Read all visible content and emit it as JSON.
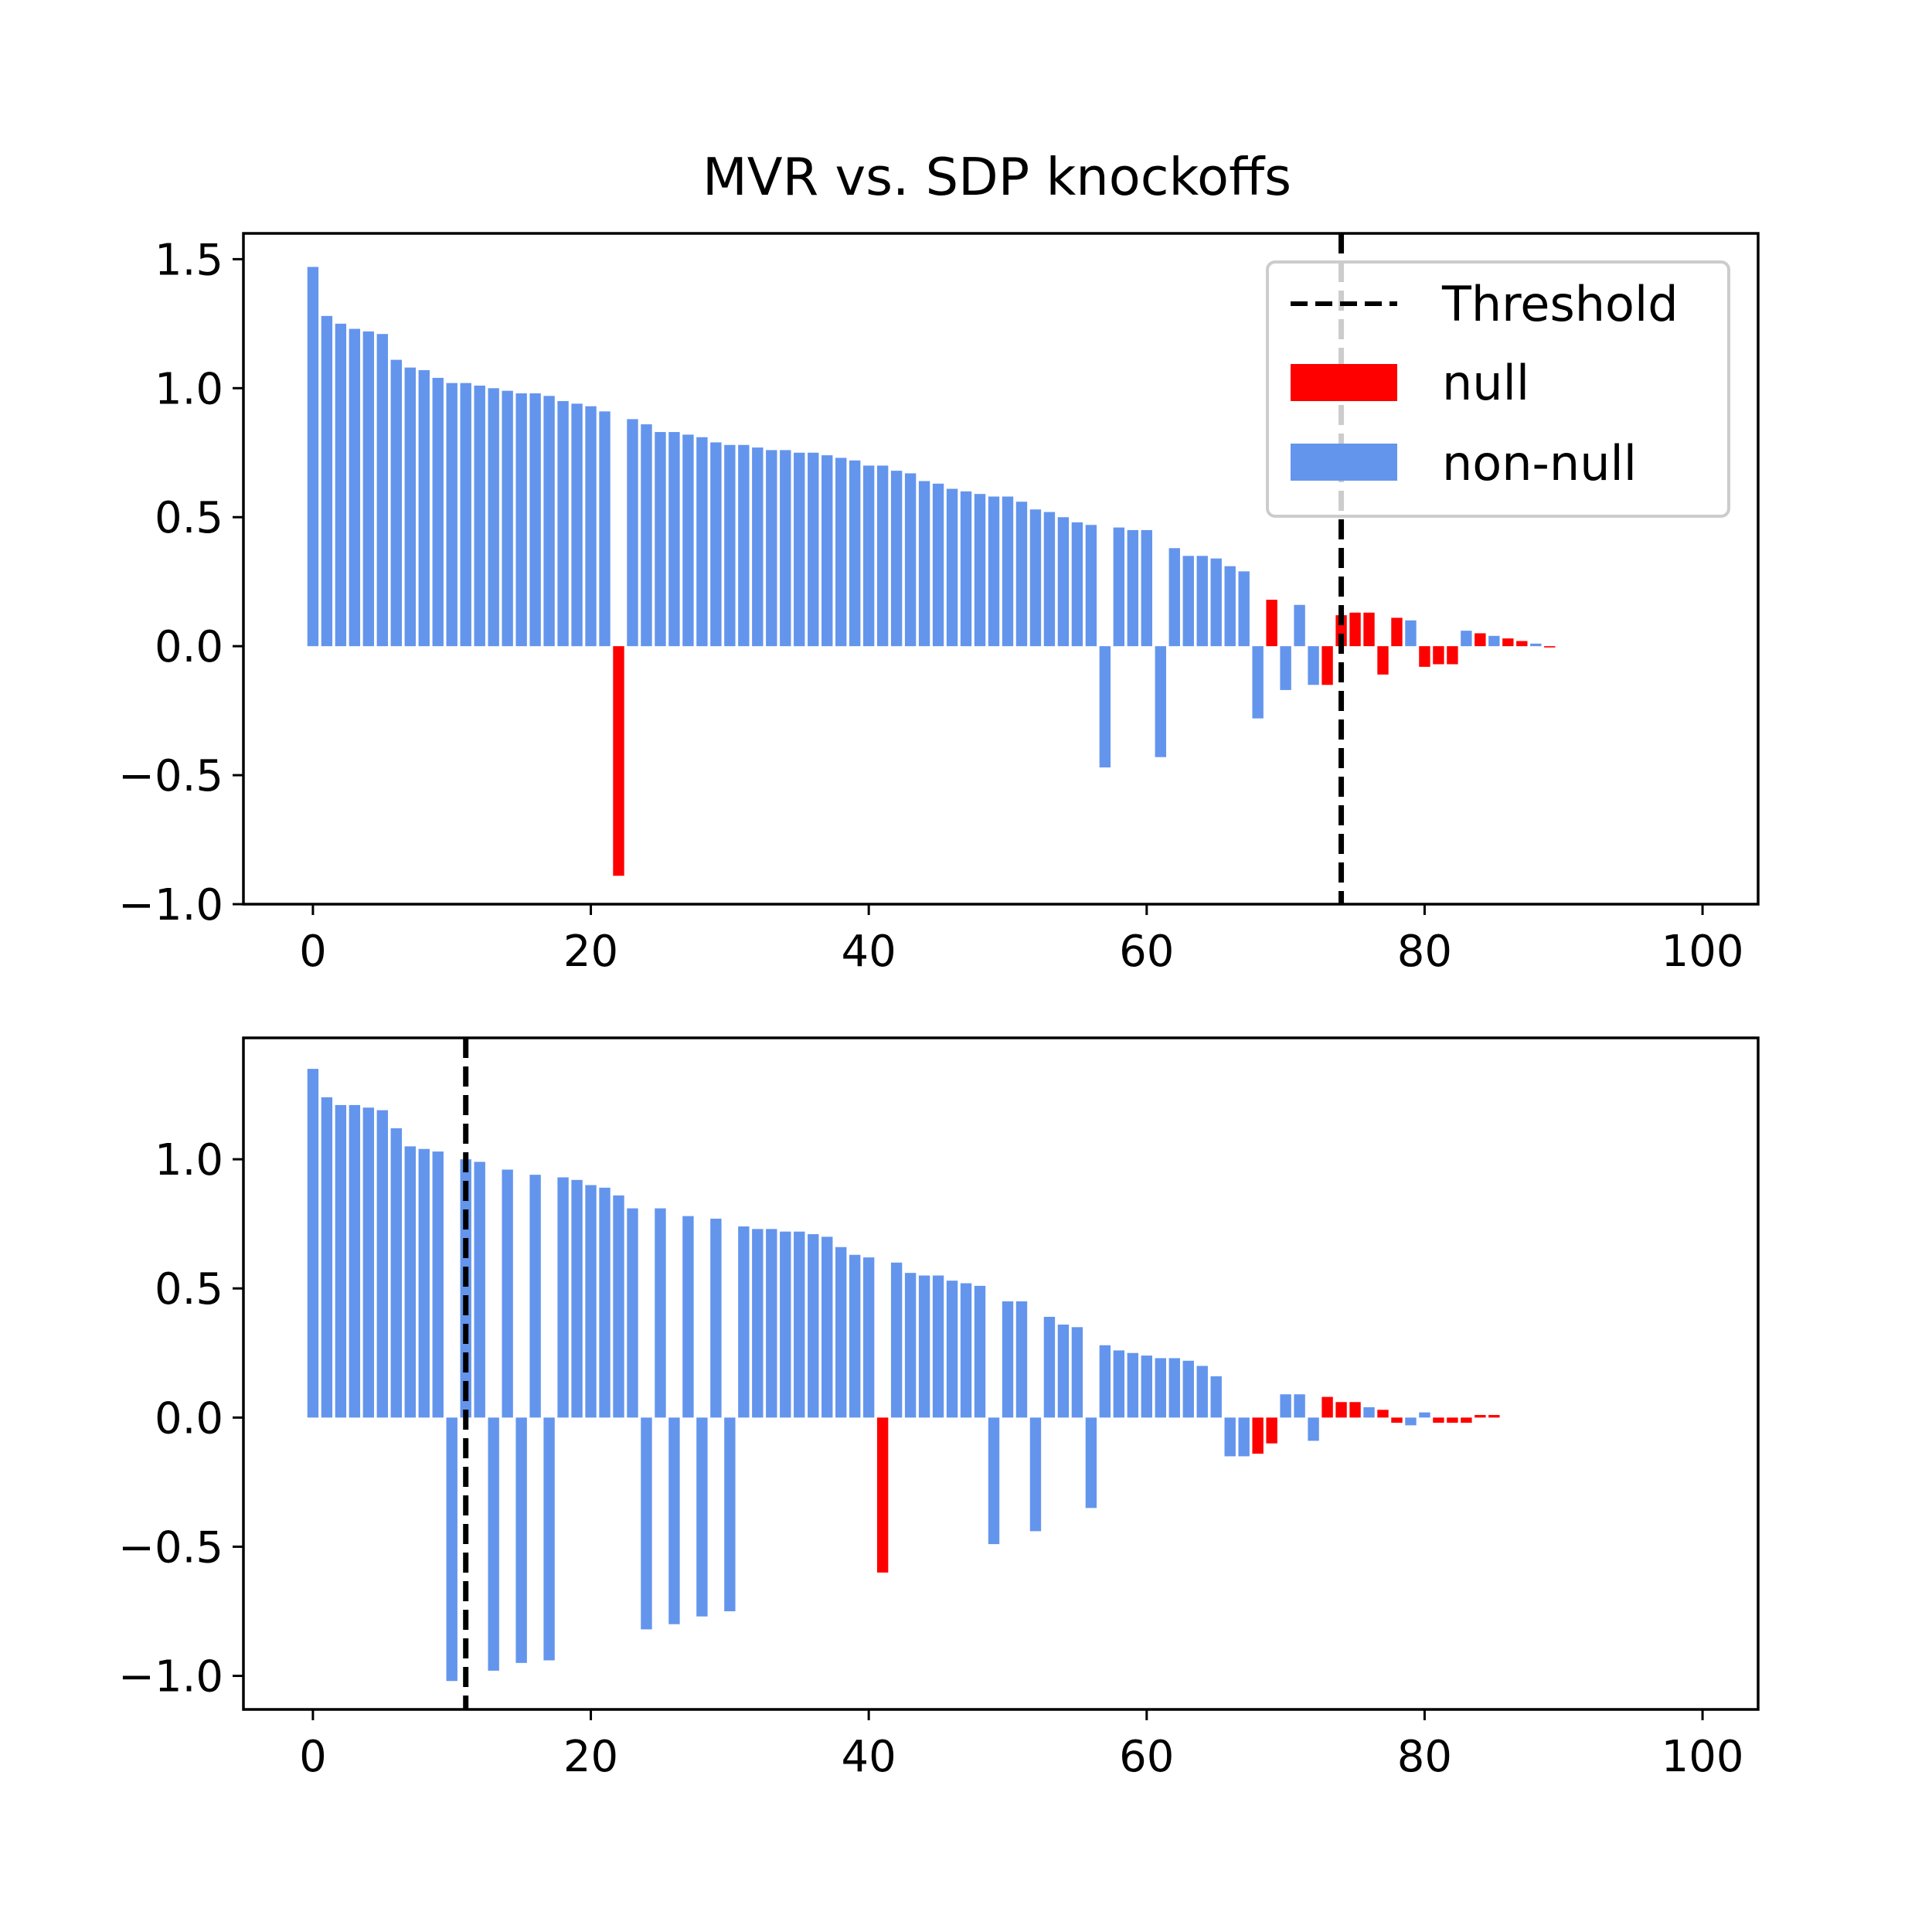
{
  "title": "MVR vs. SDP knockoffs",
  "colors": {
    "null": "#ff0000",
    "non_null": "#6495ed",
    "threshold": "#000000",
    "axes": "#000000",
    "legend_frame": "#cccccc"
  },
  "legend": {
    "placement": "upper right of top panel",
    "entries": [
      {
        "label": "Threshold",
        "kind": "dashed-line"
      },
      {
        "label": "null",
        "kind": "patch",
        "color": "#ff0000"
      },
      {
        "label": "non-null",
        "kind": "patch",
        "color": "#6495ed"
      }
    ]
  },
  "chart_data": [
    {
      "type": "bar",
      "panel": "top",
      "title": "MVR vs. SDP knockoffs",
      "xlabel": "",
      "ylabel": "",
      "xlim": [
        -5,
        104
      ],
      "ylim": [
        -1.0,
        1.6
      ],
      "xticks": [
        0,
        20,
        40,
        60,
        80,
        100
      ],
      "xtick_labels": [
        "0",
        "20",
        "40",
        "60",
        "80",
        "100"
      ],
      "yticks": [
        -1.0,
        -0.5,
        0.0,
        0.5,
        1.0,
        1.5
      ],
      "ytick_labels": [
        "−1.0",
        "−0.5",
        "0.0",
        "0.5",
        "1.0",
        "1.5"
      ],
      "threshold": 74,
      "grid": false,
      "x": [
        0,
        1,
        2,
        3,
        4,
        5,
        6,
        7,
        8,
        9,
        10,
        11,
        12,
        13,
        14,
        15,
        16,
        17,
        18,
        19,
        20,
        21,
        22,
        23,
        24,
        25,
        26,
        27,
        28,
        29,
        30,
        31,
        32,
        33,
        34,
        35,
        36,
        37,
        38,
        39,
        40,
        41,
        42,
        43,
        44,
        45,
        46,
        47,
        48,
        49,
        50,
        51,
        52,
        53,
        54,
        55,
        56,
        57,
        58,
        59,
        60,
        61,
        62,
        63,
        64,
        65,
        66,
        67,
        68,
        69,
        70,
        71,
        72,
        73,
        74,
        75,
        76,
        77,
        78,
        79,
        80,
        81,
        82,
        83,
        84,
        85,
        86,
        87,
        88,
        89
      ],
      "values": [
        1.47,
        1.28,
        1.25,
        1.23,
        1.22,
        1.21,
        1.11,
        1.08,
        1.07,
        1.04,
        1.02,
        1.02,
        1.01,
        1.0,
        0.99,
        0.98,
        0.98,
        0.97,
        0.95,
        0.94,
        0.93,
        0.91,
        -0.89,
        0.88,
        0.86,
        0.83,
        0.83,
        0.82,
        0.81,
        0.79,
        0.78,
        0.78,
        0.77,
        0.76,
        0.76,
        0.75,
        0.75,
        0.74,
        0.73,
        0.72,
        0.7,
        0.7,
        0.68,
        0.67,
        0.64,
        0.63,
        0.61,
        0.6,
        0.59,
        0.58,
        0.58,
        0.56,
        0.53,
        0.52,
        0.5,
        0.48,
        0.47,
        -0.47,
        0.46,
        0.45,
        0.45,
        -0.43,
        0.38,
        0.35,
        0.35,
        0.34,
        0.31,
        0.29,
        -0.28,
        0.18,
        -0.17,
        0.16,
        -0.15,
        -0.15,
        0.12,
        0.13,
        0.13,
        -0.11,
        0.11,
        0.1,
        -0.08,
        -0.07,
        -0.07,
        0.06,
        0.05,
        0.04,
        0.03,
        0.02,
        0.01,
        -0.005
      ],
      "is_null": [
        false,
        false,
        false,
        false,
        false,
        false,
        false,
        false,
        false,
        false,
        false,
        false,
        false,
        false,
        false,
        false,
        false,
        false,
        false,
        false,
        false,
        false,
        true,
        false,
        false,
        false,
        false,
        false,
        false,
        false,
        false,
        false,
        false,
        false,
        false,
        false,
        false,
        false,
        false,
        false,
        false,
        false,
        false,
        false,
        false,
        false,
        false,
        false,
        false,
        false,
        false,
        false,
        false,
        false,
        false,
        false,
        false,
        false,
        false,
        false,
        false,
        false,
        false,
        false,
        false,
        false,
        false,
        false,
        false,
        true,
        false,
        false,
        false,
        true,
        true,
        true,
        true,
        true,
        true,
        false,
        true,
        true,
        true,
        false,
        true,
        false,
        true,
        true,
        false,
        true
      ]
    },
    {
      "type": "bar",
      "panel": "bottom",
      "xlabel": "",
      "ylabel": "",
      "xlim": [
        -5,
        104
      ],
      "ylim": [
        -1.13,
        1.47
      ],
      "xticks": [
        0,
        20,
        40,
        60,
        80,
        100
      ],
      "xtick_labels": [
        "0",
        "20",
        "40",
        "60",
        "80",
        "100"
      ],
      "yticks": [
        -1.0,
        -0.5,
        0.0,
        0.5,
        1.0
      ],
      "ytick_labels": [
        "−1.0",
        "−0.5",
        "0.0",
        "0.5",
        "1.0"
      ],
      "threshold": 11,
      "grid": false,
      "x": [
        0,
        1,
        2,
        3,
        4,
        5,
        6,
        7,
        8,
        9,
        10,
        11,
        12,
        13,
        14,
        15,
        16,
        17,
        18,
        19,
        20,
        21,
        22,
        23,
        24,
        25,
        26,
        27,
        28,
        29,
        30,
        31,
        32,
        33,
        34,
        35,
        36,
        37,
        38,
        39,
        40,
        41,
        42,
        43,
        44,
        45,
        46,
        47,
        48,
        49,
        50,
        51,
        52,
        53,
        54,
        55,
        56,
        57,
        58,
        59,
        60,
        61,
        62,
        63,
        64,
        65,
        66,
        67,
        68,
        69,
        70,
        71,
        72,
        73,
        74,
        75,
        76,
        77,
        78,
        79,
        80,
        81,
        82,
        83,
        84,
        85
      ],
      "values": [
        1.35,
        1.24,
        1.21,
        1.21,
        1.2,
        1.19,
        1.12,
        1.05,
        1.04,
        1.03,
        -1.02,
        1.0,
        0.99,
        -0.98,
        0.96,
        -0.95,
        0.94,
        -0.94,
        0.93,
        0.92,
        0.9,
        0.89,
        0.86,
        0.81,
        -0.82,
        0.81,
        -0.8,
        0.78,
        -0.77,
        0.77,
        -0.75,
        0.74,
        0.73,
        0.73,
        0.72,
        0.72,
        0.71,
        0.7,
        0.66,
        0.63,
        0.62,
        -0.6,
        0.6,
        0.56,
        0.55,
        0.55,
        0.53,
        0.52,
        0.51,
        -0.49,
        0.45,
        0.45,
        -0.44,
        0.39,
        0.36,
        0.35,
        -0.35,
        0.28,
        0.26,
        0.25,
        0.24,
        0.23,
        0.23,
        0.22,
        0.2,
        0.16,
        -0.15,
        -0.15,
        -0.14,
        -0.1,
        0.09,
        0.09,
        -0.09,
        0.08,
        0.06,
        0.06,
        0.04,
        0.03,
        -0.02,
        -0.03,
        0.02,
        -0.02,
        -0.02,
        -0.02,
        0.01,
        0.01
      ],
      "is_null": [
        false,
        false,
        false,
        false,
        false,
        false,
        false,
        false,
        false,
        false,
        false,
        false,
        false,
        false,
        false,
        false,
        false,
        false,
        false,
        false,
        false,
        false,
        false,
        false,
        false,
        false,
        false,
        false,
        false,
        false,
        false,
        false,
        false,
        false,
        false,
        false,
        false,
        false,
        false,
        false,
        false,
        true,
        false,
        false,
        false,
        false,
        false,
        false,
        false,
        false,
        false,
        false,
        false,
        false,
        false,
        false,
        false,
        false,
        false,
        false,
        false,
        false,
        false,
        false,
        false,
        false,
        false,
        false,
        true,
        true,
        false,
        false,
        false,
        true,
        true,
        true,
        false,
        true,
        true,
        false,
        false,
        true,
        true,
        true,
        true,
        true
      ]
    }
  ]
}
